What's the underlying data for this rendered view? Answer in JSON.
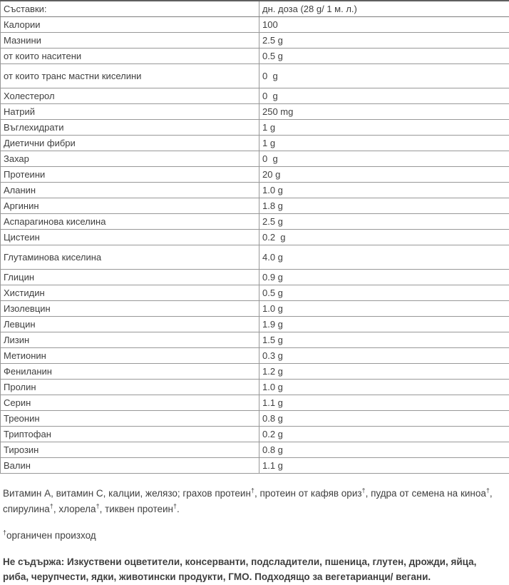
{
  "table": {
    "header": {
      "ingredient": "Съставки:",
      "dose": "дн. доза (28 g/ 1 м. л.)"
    },
    "rows": [
      {
        "name": "Калории",
        "value": "100"
      },
      {
        "name": "Мазнини",
        "value": "2.5 g"
      },
      {
        "name": "от които наситени",
        "value": "0.5 g"
      },
      {
        "name": "от които транс мастни киселини",
        "value": "0  g",
        "tall": true
      },
      {
        "name": "Холестерол",
        "value": "0  g"
      },
      {
        "name": "Натрий",
        "value": "250 mg"
      },
      {
        "name": "Въглехидрати",
        "value": "1 g"
      },
      {
        "name": "Диетични фибри",
        "value": "1 g"
      },
      {
        "name": "Захар",
        "value": "0  g"
      },
      {
        "name": "Протеини",
        "value": "20 g"
      },
      {
        "name": "Аланин",
        "value": "1.0 g"
      },
      {
        "name": "Аргинин",
        "value": "1.8 g"
      },
      {
        "name": "Аспарагинова киселина",
        "value": "2.5 g"
      },
      {
        "name": "Цистеин",
        "value": "0.2  g"
      },
      {
        "name": "Глутаминова киселина",
        "value": "4.0 g",
        "tall": true
      },
      {
        "name": "Глицин",
        "value": "0.9 g"
      },
      {
        "name": "Хистидин",
        "value": "0.5 g"
      },
      {
        "name": "Изолевцин",
        "value": "1.0 g"
      },
      {
        "name": "Левцин",
        "value": "1.9 g"
      },
      {
        "name": "Лизин",
        "value": "1.5 g"
      },
      {
        "name": "Метионин",
        "value": "0.3 g"
      },
      {
        "name": "Фениланин",
        "value": "1.2 g"
      },
      {
        "name": "Пролин",
        "value": "1.0 g"
      },
      {
        "name": "Серин",
        "value": "1.1 g"
      },
      {
        "name": "Треонин",
        "value": "0.8 g"
      },
      {
        "name": "Триптофан",
        "value": "0.2 g"
      },
      {
        "name": "Тирозин",
        "value": "0.8 g"
      },
      {
        "name": "Валин",
        "value": "1.1 g"
      }
    ]
  },
  "notes": {
    "ingredients_note_segments": [
      {
        "t": "Витамин А, витамин С, калции, желязо; грахов протеин"
      },
      {
        "t": "†",
        "sup": true
      },
      {
        "t": ", протеин от кафяв ориз"
      },
      {
        "t": "†",
        "sup": true
      },
      {
        "t": ", пудра от семена на киноа"
      },
      {
        "t": "†",
        "sup": true
      },
      {
        "t": ", спирулина"
      },
      {
        "t": "†",
        "sup": true
      },
      {
        "t": ", хлорела"
      },
      {
        "t": "†",
        "sup": true
      },
      {
        "t": ", тиквен протеин"
      },
      {
        "t": "†",
        "sup": true
      },
      {
        "t": "."
      }
    ],
    "footnote_segments": [
      {
        "t": "†",
        "sup": true
      },
      {
        "t": "органичен произход"
      }
    ],
    "allergen_note": "Не съдържа: Изкуствени оцветители, консерванти, подсладители, пшеница, глутен, дрожди, яйца, риба, черупчести, ядки, животински продукти, ГМО. Подходящо за вегетарианци/ вегани."
  }
}
